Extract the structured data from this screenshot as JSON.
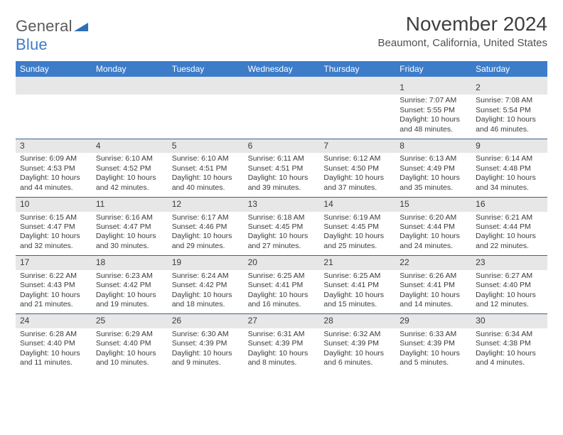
{
  "logo": {
    "word1": "General",
    "word2": "Blue",
    "mark_color": "#2e6fb6"
  },
  "header": {
    "month_title": "November 2024",
    "location": "Beaumont, California, United States"
  },
  "styles": {
    "header_bg": "#3d7cc9",
    "row_divider": "#3d5f8f",
    "daynum_bg": "#e7e7e7"
  },
  "days_of_week": [
    "Sunday",
    "Monday",
    "Tuesday",
    "Wednesday",
    "Thursday",
    "Friday",
    "Saturday"
  ],
  "weeks": [
    [
      null,
      null,
      null,
      null,
      null,
      {
        "n": "1",
        "sr": "7:07 AM",
        "ss": "5:55 PM",
        "dl": "10 hours and 48 minutes."
      },
      {
        "n": "2",
        "sr": "7:08 AM",
        "ss": "5:54 PM",
        "dl": "10 hours and 46 minutes."
      }
    ],
    [
      {
        "n": "3",
        "sr": "6:09 AM",
        "ss": "4:53 PM",
        "dl": "10 hours and 44 minutes."
      },
      {
        "n": "4",
        "sr": "6:10 AM",
        "ss": "4:52 PM",
        "dl": "10 hours and 42 minutes."
      },
      {
        "n": "5",
        "sr": "6:10 AM",
        "ss": "4:51 PM",
        "dl": "10 hours and 40 minutes."
      },
      {
        "n": "6",
        "sr": "6:11 AM",
        "ss": "4:51 PM",
        "dl": "10 hours and 39 minutes."
      },
      {
        "n": "7",
        "sr": "6:12 AM",
        "ss": "4:50 PM",
        "dl": "10 hours and 37 minutes."
      },
      {
        "n": "8",
        "sr": "6:13 AM",
        "ss": "4:49 PM",
        "dl": "10 hours and 35 minutes."
      },
      {
        "n": "9",
        "sr": "6:14 AM",
        "ss": "4:48 PM",
        "dl": "10 hours and 34 minutes."
      }
    ],
    [
      {
        "n": "10",
        "sr": "6:15 AM",
        "ss": "4:47 PM",
        "dl": "10 hours and 32 minutes."
      },
      {
        "n": "11",
        "sr": "6:16 AM",
        "ss": "4:47 PM",
        "dl": "10 hours and 30 minutes."
      },
      {
        "n": "12",
        "sr": "6:17 AM",
        "ss": "4:46 PM",
        "dl": "10 hours and 29 minutes."
      },
      {
        "n": "13",
        "sr": "6:18 AM",
        "ss": "4:45 PM",
        "dl": "10 hours and 27 minutes."
      },
      {
        "n": "14",
        "sr": "6:19 AM",
        "ss": "4:45 PM",
        "dl": "10 hours and 25 minutes."
      },
      {
        "n": "15",
        "sr": "6:20 AM",
        "ss": "4:44 PM",
        "dl": "10 hours and 24 minutes."
      },
      {
        "n": "16",
        "sr": "6:21 AM",
        "ss": "4:44 PM",
        "dl": "10 hours and 22 minutes."
      }
    ],
    [
      {
        "n": "17",
        "sr": "6:22 AM",
        "ss": "4:43 PM",
        "dl": "10 hours and 21 minutes."
      },
      {
        "n": "18",
        "sr": "6:23 AM",
        "ss": "4:42 PM",
        "dl": "10 hours and 19 minutes."
      },
      {
        "n": "19",
        "sr": "6:24 AM",
        "ss": "4:42 PM",
        "dl": "10 hours and 18 minutes."
      },
      {
        "n": "20",
        "sr": "6:25 AM",
        "ss": "4:41 PM",
        "dl": "10 hours and 16 minutes."
      },
      {
        "n": "21",
        "sr": "6:25 AM",
        "ss": "4:41 PM",
        "dl": "10 hours and 15 minutes."
      },
      {
        "n": "22",
        "sr": "6:26 AM",
        "ss": "4:41 PM",
        "dl": "10 hours and 14 minutes."
      },
      {
        "n": "23",
        "sr": "6:27 AM",
        "ss": "4:40 PM",
        "dl": "10 hours and 12 minutes."
      }
    ],
    [
      {
        "n": "24",
        "sr": "6:28 AM",
        "ss": "4:40 PM",
        "dl": "10 hours and 11 minutes."
      },
      {
        "n": "25",
        "sr": "6:29 AM",
        "ss": "4:40 PM",
        "dl": "10 hours and 10 minutes."
      },
      {
        "n": "26",
        "sr": "6:30 AM",
        "ss": "4:39 PM",
        "dl": "10 hours and 9 minutes."
      },
      {
        "n": "27",
        "sr": "6:31 AM",
        "ss": "4:39 PM",
        "dl": "10 hours and 8 minutes."
      },
      {
        "n": "28",
        "sr": "6:32 AM",
        "ss": "4:39 PM",
        "dl": "10 hours and 6 minutes."
      },
      {
        "n": "29",
        "sr": "6:33 AM",
        "ss": "4:39 PM",
        "dl": "10 hours and 5 minutes."
      },
      {
        "n": "30",
        "sr": "6:34 AM",
        "ss": "4:38 PM",
        "dl": "10 hours and 4 minutes."
      }
    ]
  ],
  "labels": {
    "sunrise": "Sunrise:",
    "sunset": "Sunset:",
    "daylight": "Daylight:"
  }
}
